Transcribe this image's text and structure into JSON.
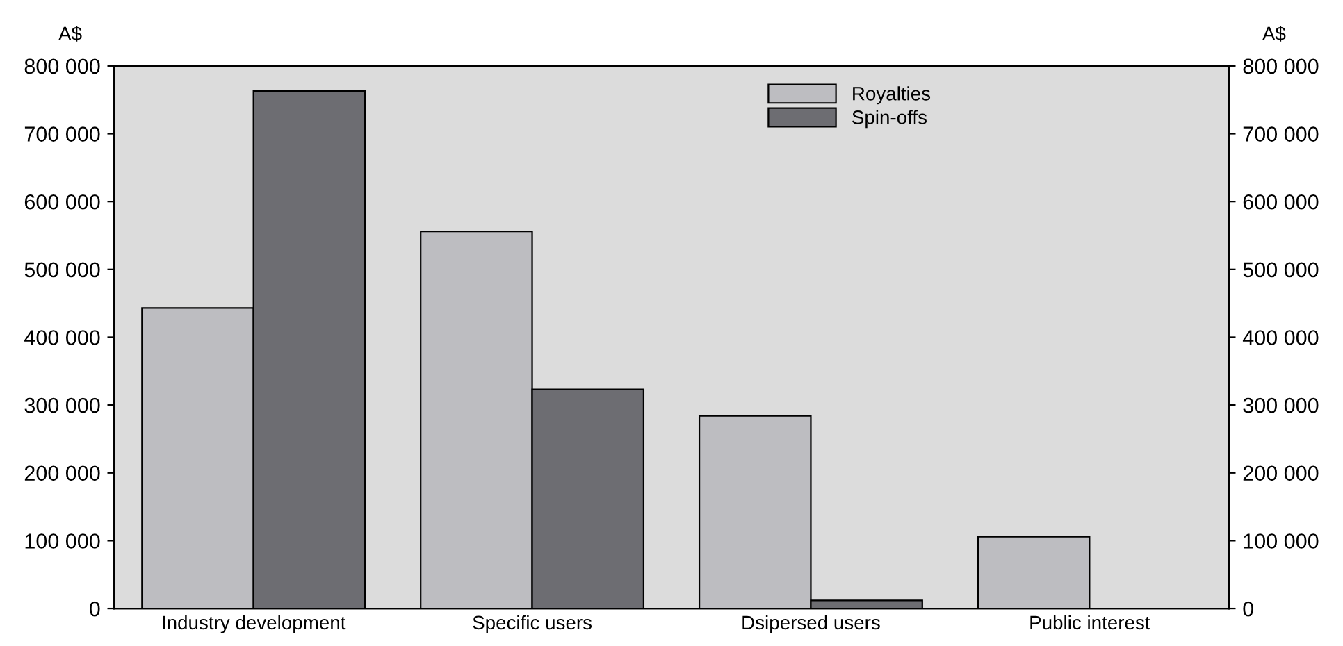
{
  "chart_data": {
    "type": "bar",
    "categories": [
      "Industry development",
      "Specific users",
      "Dsipersed users",
      "Public interest"
    ],
    "series": [
      {
        "name": "Royalties",
        "color": "#bdbdc1",
        "values": [
          443000,
          556000,
          284000,
          106000
        ]
      },
      {
        "name": "Spin-offs",
        "color": "#6d6d72",
        "values": [
          763000,
          323000,
          12000,
          0
        ]
      }
    ],
    "ylabel": "A$",
    "y2label": "A$",
    "ylim": [
      0,
      800000
    ],
    "y2lim": [
      0,
      800000
    ],
    "yticks": [
      0,
      {
        "value": 100000,
        "label": "100 000"
      },
      {
        "value": 200000,
        "label": "200 000"
      },
      {
        "value": 300000,
        "label": "300 000"
      },
      {
        "value": 400000,
        "label": "400 000"
      },
      {
        "value": 500000,
        "label": "500 000"
      },
      {
        "value": 600000,
        "label": "600 000"
      },
      {
        "value": 700000,
        "label": "700 000"
      },
      {
        "value": 800000,
        "label": "800 000"
      }
    ],
    "y2ticks": [
      0,
      {
        "value": 100000,
        "label": "100 000"
      },
      {
        "value": 200000,
        "label": "200 000"
      },
      {
        "value": 300000,
        "label": "300 000"
      },
      {
        "value": 400000,
        "label": "400 000"
      },
      {
        "value": 500000,
        "label": "500 000"
      },
      {
        "value": 600000,
        "label": "600 000"
      },
      {
        "value": 700000,
        "label": "700 000"
      },
      {
        "value": 800000,
        "label": "800 000"
      }
    ],
    "grid": false,
    "legend": "top"
  }
}
